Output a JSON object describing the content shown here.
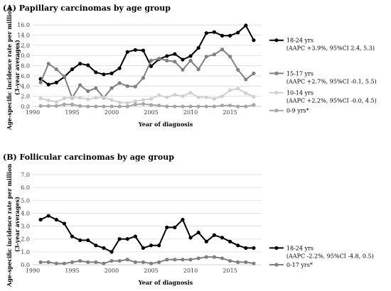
{
  "chart_data": [
    {
      "type": "line",
      "title": "(A) Papillary carcinomas by age group",
      "xlabel": "Year of diagnosis",
      "ylabel": "Age-specific incidence rate per million (3-year averages)",
      "ylabel_lines": [
        "Age-specific incidence rate per million",
        "(3-year averages)"
      ],
      "xlim": [
        1990,
        2019
      ],
      "xticks": [
        1990,
        1995,
        2000,
        2005,
        2010,
        2015
      ],
      "ylim": [
        0,
        17
      ],
      "yticks": [
        "0.0",
        "2.0",
        "4.0",
        "6.0",
        "8.0",
        "10.0",
        "12.0",
        "14.0",
        "16.0"
      ],
      "grid": true,
      "legend_position": "right",
      "x": [
        1991,
        1992,
        1993,
        1994,
        1995,
        1996,
        1997,
        1998,
        1999,
        2000,
        2001,
        2002,
        2003,
        2004,
        2005,
        2006,
        2007,
        2008,
        2009,
        2010,
        2011,
        2012,
        2013,
        2014,
        2015,
        2016,
        2017,
        2018
      ],
      "series": [
        {
          "name": "18-24 yrs",
          "note": "(AAPC +3.9%, 95%CI 2.4, 5.3)",
          "color": "#000000",
          "values": [
            5.4,
            4.3,
            4.7,
            5.8,
            7.3,
            8.4,
            8.1,
            6.7,
            6.3,
            6.5,
            7.5,
            10.7,
            11.1,
            11.0,
            7.9,
            9.3,
            9.9,
            10.3,
            9.2,
            9.9,
            11.5,
            14.4,
            14.6,
            13.9,
            13.9,
            14.5,
            15.9,
            13.0
          ],
          "label_y": 13.0
        },
        {
          "name": "15-17 yrs",
          "note": "(AAPC +2.7%, 95%CI -0.1, 5.5)",
          "color": "#808080",
          "values": [
            4.7,
            8.4,
            7.3,
            5.9,
            1.7,
            4.2,
            3.0,
            3.6,
            1.7,
            3.6,
            4.6,
            4.0,
            3.9,
            5.6,
            9.0,
            9.4,
            9.0,
            8.8,
            7.2,
            9.0,
            7.3,
            9.8,
            10.2,
            11.2,
            9.8,
            7.2,
            5.3,
            6.5
          ],
          "label_y": 6.5
        },
        {
          "name": "10-14 yrs",
          "note": "(AAPC +2.2%, 95%CI -0.0, 4.5)",
          "color": "#d0d0d0",
          "values": [
            1.6,
            1.2,
            0.9,
            1.6,
            1.8,
            1.7,
            1.4,
            1.7,
            1.8,
            1.3,
            0.8,
            0.7,
            1.0,
            1.3,
            1.5,
            2.2,
            1.8,
            2.3,
            2.0,
            2.7,
            1.8,
            1.8,
            1.5,
            2.0,
            3.2,
            3.5,
            2.6,
            1.9
          ],
          "label_y": 2.7
        },
        {
          "name": "0-9 yrs*",
          "note": "",
          "color": "#a6a6a6",
          "values": [
            0.1,
            0.1,
            0.1,
            0.4,
            0.4,
            0.1,
            0.0,
            0.0,
            0.0,
            0.0,
            0.0,
            0.0,
            0.4,
            0.5,
            0.3,
            0.2,
            0.0,
            0.0,
            0.0,
            0.0,
            0.0,
            0.0,
            0.0,
            0.2,
            0.2,
            0.0,
            0.0,
            0.3
          ],
          "label_y": -0.8
        }
      ]
    },
    {
      "type": "line",
      "title": "(B) Follicular carcinomas by age group",
      "xlabel": "Year of diagnosis",
      "ylabel": "Age-specific incidence rate per million (3-year averages)",
      "ylabel_lines": [
        "Age-specific incidence rate per million",
        "(3-year averages)"
      ],
      "xlim": [
        1990,
        2019
      ],
      "xticks": [
        1990,
        1995,
        2000,
        2005,
        2010,
        2015
      ],
      "ylim": [
        0,
        7
      ],
      "yticks": [
        "0.0",
        "1.0",
        "2.0",
        "3.0",
        "4.0",
        "5.0",
        "6.0",
        "7.0"
      ],
      "grid": true,
      "legend_position": "right",
      "x": [
        1991,
        1992,
        1993,
        1994,
        1995,
        1996,
        1997,
        1998,
        1999,
        2000,
        2001,
        2002,
        2003,
        2004,
        2005,
        2006,
        2007,
        2008,
        2009,
        2010,
        2011,
        2012,
        2013,
        2014,
        2015,
        2016,
        2017,
        2018
      ],
      "series": [
        {
          "name": "18-24 yrs",
          "note": "(AAPC -2.2%, 95%CI -4.8, 0.5)",
          "color": "#000000",
          "values": [
            3.5,
            3.8,
            3.5,
            3.2,
            2.2,
            1.9,
            1.9,
            1.5,
            1.3,
            1.0,
            2.0,
            2.0,
            2.2,
            1.3,
            1.5,
            1.5,
            2.9,
            2.9,
            3.5,
            2.1,
            2.5,
            1.8,
            2.3,
            2.1,
            1.8,
            1.5,
            1.3,
            1.3
          ],
          "label_y": 1.3
        },
        {
          "name": "0-17 yrs*",
          "note": "",
          "color": "#808080",
          "values": [
            0.2,
            0.2,
            0.1,
            0.1,
            0.2,
            0.3,
            0.2,
            0.2,
            0.1,
            0.3,
            0.3,
            0.4,
            0.2,
            0.2,
            0.1,
            0.2,
            0.4,
            0.4,
            0.4,
            0.4,
            0.5,
            0.6,
            0.6,
            0.5,
            0.3,
            0.2,
            0.2,
            0.1
          ],
          "label_y": 0.0
        }
      ]
    }
  ]
}
